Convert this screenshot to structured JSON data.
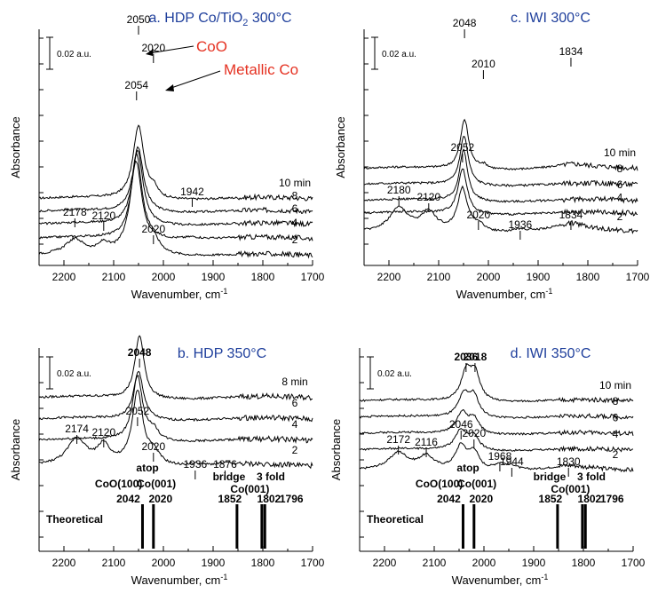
{
  "chart_data": [
    {
      "type": "line",
      "title": "a. HDP Co/TiO",
      "title_sub": "2",
      "title_tail": " 300°C",
      "xlabel": "Wavenumber, cm",
      "xlabel_sup": "-1",
      "ylabel": "Absorbance",
      "xlim": [
        2250,
        1700
      ],
      "xticks": [
        "2200",
        "2100",
        "2000",
        "1900",
        "1800",
        "1700"
      ],
      "scale_bar": "0.02 a.u.",
      "scale_bar_value": 0.02,
      "annotations": [
        "CoO",
        "Metallic Co"
      ],
      "series": [
        {
          "name": "10 min",
          "offset": 4,
          "peaks": [
            [
              2050,
              5.2,
              13
            ],
            [
              2020,
              0.6,
              10
            ]
          ]
        },
        {
          "name": "8",
          "offset": 3.1,
          "peaks": [
            [
              2051,
              4.6,
              13
            ]
          ]
        },
        {
          "name": "6",
          "offset": 2.2,
          "peaks": [
            [
              2052,
              5.3,
              13
            ]
          ]
        },
        {
          "name": "4",
          "offset": 1.2,
          "peaks": [
            [
              2054,
              6.0,
              13
            ],
            [
              1942,
              0.15,
              20
            ]
          ]
        },
        {
          "name": "2",
          "offset": 0,
          "peaks": [
            [
              2178,
              1.0,
              22
            ],
            [
              2120,
              0.6,
              12
            ],
            [
              2055,
              6.5,
              15
            ],
            [
              2020,
              0.8,
              15
            ]
          ]
        }
      ],
      "peak_labels": [
        "2050",
        "2020",
        "2054",
        "1942",
        "2178",
        "2120",
        "2020"
      ]
    },
    {
      "type": "line",
      "title": "c. IWI 300°C",
      "xlabel": "Wavenumber, cm",
      "xlabel_sup": "-1",
      "ylabel": "Absorbance",
      "xlim": [
        2250,
        1700
      ],
      "xticks": [
        "2200",
        "2100",
        "2000",
        "1900",
        "1800",
        "1700"
      ],
      "scale_bar": "0.02 a.u.",
      "scale_bar_value": 0.02,
      "series": [
        {
          "name": "10 min",
          "offset": 4,
          "peaks": [
            [
              2048,
              3.5,
              10
            ],
            [
              2010,
              0.3,
              10
            ],
            [
              1834,
              0.25,
              40
            ]
          ]
        },
        {
          "name": "8",
          "offset": 3.0,
          "peaks": [
            [
              2049,
              3.5,
              10
            ]
          ]
        },
        {
          "name": "6",
          "offset": 2.0,
          "peaks": [
            [
              2050,
              3.6,
              10
            ]
          ]
        },
        {
          "name": "4",
          "offset": 1.2,
          "peaks": [
            [
              2052,
              3.2,
              11
            ]
          ]
        },
        {
          "name": "2",
          "offset": 0,
          "peaks": [
            [
              2180,
              1.6,
              22
            ],
            [
              2120,
              1.3,
              18
            ],
            [
              2052,
              3.0,
              12
            ],
            [
              2020,
              0.5,
              15
            ],
            [
              1936,
              0.2,
              20
            ],
            [
              1834,
              0.55,
              45
            ]
          ]
        }
      ],
      "peak_labels": [
        "2048",
        "2010",
        "1834",
        "2052",
        "2180",
        "2120",
        "2020",
        "1936",
        "1834"
      ]
    },
    {
      "type": "line",
      "title": "b. HDP 350°C",
      "xlabel": "Wavenumber, cm",
      "xlabel_sup": "-1",
      "ylabel": "Absorbance",
      "xlim": [
        2250,
        1700
      ],
      "xticks": [
        "2200",
        "2100",
        "2000",
        "1900",
        "1800",
        "1700"
      ],
      "scale_bar": "0.02 a.u.",
      "scale_bar_value": 0.02,
      "series": [
        {
          "name": "8 min",
          "offset": 3.2,
          "peaks": [
            [
              2048,
              4.2,
              11
            ]
          ]
        },
        {
          "name": "6",
          "offset": 2.2,
          "peaks": [
            [
              2050,
              3.2,
              12
            ]
          ]
        },
        {
          "name": "4",
          "offset": 1.2,
          "peaks": [
            [
              2052,
              4.3,
              12
            ],
            [
              2020,
              0.7,
              12
            ]
          ]
        },
        {
          "name": "2",
          "offset": 0,
          "peaks": [
            [
              2174,
              1.7,
              22
            ],
            [
              2120,
              1.2,
              15
            ],
            [
              2052,
              4.8,
              13
            ],
            [
              2020,
              0.8,
              15
            ],
            [
              1936,
              0.15,
              20
            ],
            [
              1876,
              0.15,
              20
            ]
          ]
        }
      ],
      "peak_labels": [
        "2048",
        "2052",
        "2174",
        "2120",
        "2020",
        "1936",
        "1876"
      ],
      "theoretical": {
        "label": "Theoretical",
        "lines": [
          2042,
          2020,
          1852,
          1802,
          1796
        ],
        "line_labels": [
          "2042",
          "2020",
          "1852",
          "1802",
          "1796"
        ],
        "site_labels": [
          "atop",
          "CoO(100)",
          "Co(001)",
          "bridge",
          "3 fold",
          "Co(001)"
        ]
      }
    },
    {
      "type": "line",
      "title": "d. IWI 350°C",
      "xlabel": "Wavenumber, cm",
      "xlabel_sup": "-1",
      "ylabel": "Absorbance",
      "xlim": [
        2250,
        1700
      ],
      "xticks": [
        "2200",
        "2100",
        "2000",
        "1900",
        "1800",
        "1700"
      ],
      "scale_bar": "0.02 a.u.",
      "scale_bar_value": 0.02,
      "series": [
        {
          "name": "10 min",
          "offset": 3.4,
          "peaks": [
            [
              2036,
              2.3,
              12
            ],
            [
              2018,
              2.2,
              12
            ]
          ]
        },
        {
          "name": "8",
          "offset": 2.6,
          "peaks": [
            [
              2040,
              1.8,
              14
            ],
            [
              2020,
              1.6,
              12
            ]
          ]
        },
        {
          "name": "6",
          "offset": 1.8,
          "peaks": [
            [
              2044,
              1.7,
              14
            ],
            [
              2020,
              1.2,
              12
            ]
          ]
        },
        {
          "name": "4",
          "offset": 1.0,
          "peaks": [
            [
              2046,
              1.6,
              15
            ],
            [
              2020,
              1.1,
              12
            ]
          ]
        },
        {
          "name": "2",
          "offset": 0,
          "peaks": [
            [
              2172,
              1.3,
              22
            ],
            [
              2116,
              1.0,
              18
            ],
            [
              2046,
              1.9,
              14
            ],
            [
              2020,
              1.4,
              12
            ],
            [
              1968,
              0.5,
              14
            ],
            [
              1944,
              0.35,
              14
            ],
            [
              1830,
              0.3,
              40
            ]
          ]
        }
      ],
      "peak_labels": [
        "2036",
        "2018",
        "2046",
        "2020",
        "2172",
        "2116",
        "1968",
        "1944",
        "1830"
      ],
      "theoretical": {
        "label": "Theoretical",
        "lines": [
          2042,
          2020,
          1852,
          1802,
          1796
        ],
        "line_labels": [
          "2042",
          "2020",
          "1852",
          "1802",
          "1796"
        ],
        "site_labels": [
          "atop",
          "CoO(100)",
          "Co(001)",
          "bridge",
          "3 fold",
          "Co(001)"
        ]
      }
    }
  ]
}
